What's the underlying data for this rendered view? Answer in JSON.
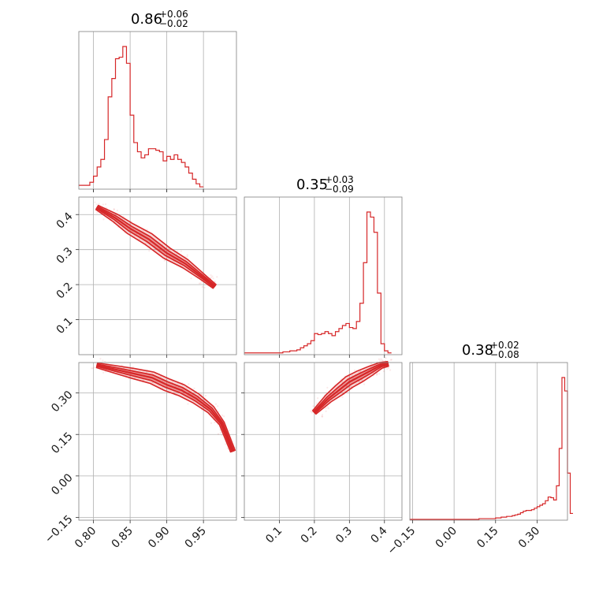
{
  "chart_data": {
    "type": "corner",
    "color": "#d62728",
    "parameters": [
      {
        "title_value": "0.86",
        "title_plus": "+0.06",
        "title_minus": "−0.02"
      },
      {
        "title_value": "0.35",
        "title_plus": "+0.03",
        "title_minus": "−0.09"
      },
      {
        "title_value": "0.38",
        "title_plus": "+0.02",
        "title_minus": "−0.08"
      }
    ],
    "ranges": [
      [
        0.78,
        0.995
      ],
      [
        0.0,
        0.45
      ],
      [
        -0.16,
        0.41
      ]
    ],
    "ticks": [
      {
        "values": [
          0.8,
          0.85,
          0.9,
          0.95
        ],
        "labels": [
          "0.80",
          "0.85",
          "0.90",
          "0.95"
        ]
      },
      {
        "values": [
          0.1,
          0.2,
          0.3,
          0.4
        ],
        "labels": [
          "0.1",
          "0.2",
          "0.3",
          "0.4"
        ]
      },
      {
        "values": [
          -0.15,
          0.0,
          0.15,
          0.3
        ],
        "labels": [
          "−0.15",
          "0.00",
          "0.15",
          "0.30"
        ]
      }
    ],
    "histograms": [
      {
        "edges_start": 0.78,
        "bin_width": 0.005,
        "counts": [
          2,
          2,
          2,
          4,
          8,
          14,
          19,
          32,
          60,
          72,
          85,
          86,
          93,
          82,
          48,
          30,
          24,
          20,
          22,
          26,
          26,
          25,
          24,
          18,
          21,
          19,
          22,
          19,
          17,
          14,
          10,
          6,
          3,
          1
        ]
      },
      {
        "edges_start": 0.0,
        "bin_width": 0.01,
        "counts": [
          1,
          1,
          1,
          1,
          1,
          1,
          1,
          1,
          1,
          1,
          1,
          2,
          2,
          3,
          3,
          4,
          6,
          8,
          10,
          13,
          20,
          19,
          20,
          22,
          20,
          18,
          22,
          25,
          28,
          30,
          26,
          25,
          32,
          50,
          90,
          140,
          135,
          120,
          60,
          10,
          3,
          1
        ]
      },
      {
        "edges_start": -0.16,
        "bin_width": 0.01,
        "counts": [
          0,
          0,
          0,
          0,
          0,
          0,
          0,
          0,
          0,
          0,
          0,
          0,
          0,
          0,
          0,
          0,
          0,
          0,
          0,
          0,
          0,
          0,
          0,
          0,
          0,
          1,
          1,
          1,
          1,
          1,
          1,
          2,
          2,
          3,
          3,
          4,
          4,
          5,
          6,
          7,
          9,
          11,
          12,
          12,
          13,
          15,
          17,
          19,
          21,
          25,
          30,
          29,
          26,
          45,
          95,
          190,
          172,
          62,
          8
        ]
      }
    ],
    "joint": {
      "p1_vs_p0": {
        "ridge": [
          [
            0.805,
            0.42
          ],
          [
            0.83,
            0.39
          ],
          [
            0.85,
            0.36
          ],
          [
            0.875,
            0.33
          ],
          [
            0.9,
            0.29
          ],
          [
            0.925,
            0.26
          ],
          [
            0.95,
            0.22
          ],
          [
            0.965,
            0.195
          ]
        ],
        "scatter_extent": [
          [
            0.78,
            0.44
          ],
          [
            0.99,
            0.12
          ]
        ]
      },
      "p2_vs_p0": {
        "ridge": [
          [
            0.805,
            0.4
          ],
          [
            0.83,
            0.385
          ],
          [
            0.855,
            0.37
          ],
          [
            0.88,
            0.355
          ],
          [
            0.9,
            0.33
          ],
          [
            0.92,
            0.31
          ],
          [
            0.94,
            0.28
          ],
          [
            0.96,
            0.24
          ],
          [
            0.975,
            0.19
          ],
          [
            0.99,
            0.09
          ]
        ]
      },
      "p2_vs_p1": {
        "ridge": [
          [
            0.2,
            0.23
          ],
          [
            0.24,
            0.28
          ],
          [
            0.27,
            0.31
          ],
          [
            0.3,
            0.34
          ],
          [
            0.33,
            0.36
          ],
          [
            0.36,
            0.38
          ],
          [
            0.39,
            0.4
          ],
          [
            0.41,
            0.405
          ]
        ],
        "scatter_extent": [
          [
            0.04,
            0.0
          ],
          [
            0.42,
            0.41
          ]
        ]
      }
    }
  }
}
